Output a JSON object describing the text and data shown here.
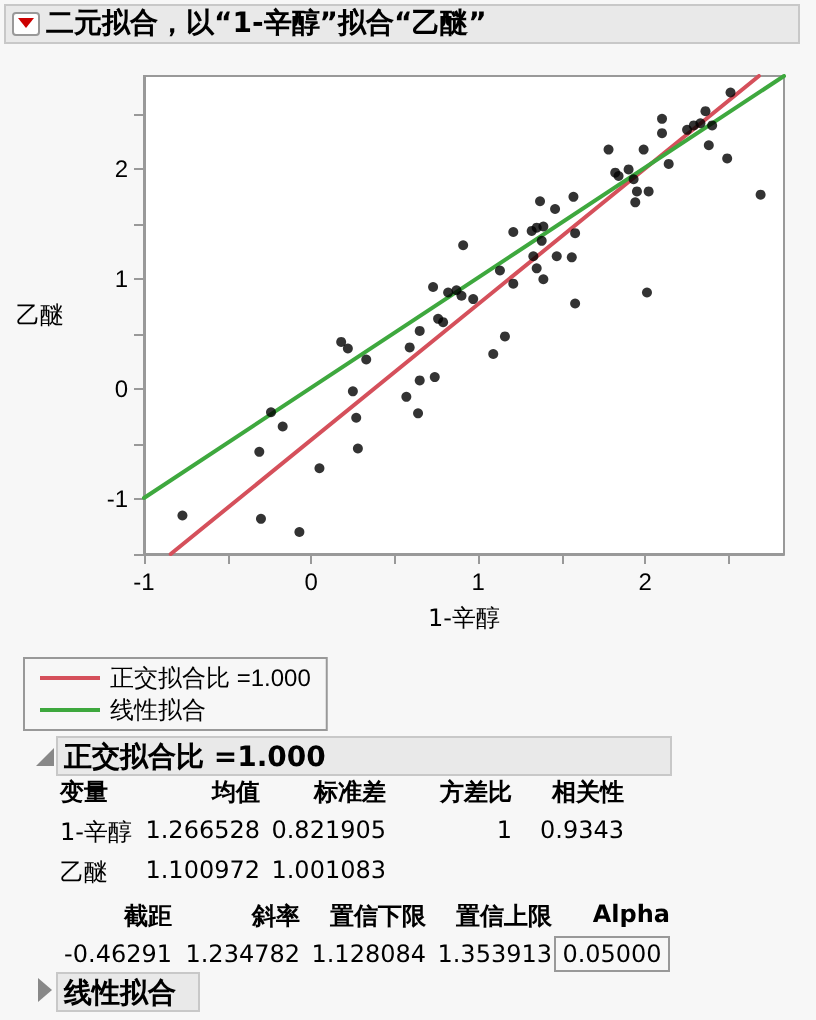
{
  "chart_data": {
    "type": "scatter",
    "title": "二元拟合，以“1-辛醇”拟合“乙醚”",
    "xlabel": "1-辛醇",
    "ylabel": "乙醚",
    "xlim": [
      -1,
      2.83
    ],
    "ylim": [
      -1.5,
      2.85
    ],
    "xticks": [
      -1,
      {
        "value": -0.5,
        "label": null
      },
      0,
      {
        "value": 0.5,
        "label": null
      },
      1,
      {
        "value": 1.5,
        "label": null
      },
      2,
      {
        "value": 2.5,
        "label": null
      }
    ],
    "yticks": [
      {
        "value": -1.5,
        "label": null
      },
      -1,
      {
        "value": -0.5,
        "label": null
      },
      0,
      {
        "value": 0.5,
        "label": null
      },
      1,
      {
        "value": 1.5,
        "label": null
      },
      2,
      {
        "value": 2.5,
        "label": null
      }
    ],
    "grid": false,
    "legend": "bottom left",
    "marker": "circle",
    "series": [
      {
        "color": "#000000",
        "x": [
          2.51,
          2.36,
          2.1,
          2.1,
          2.25,
          2.29,
          2.33,
          2.4,
          2.38,
          2.49,
          2.69,
          1.78,
          1.82,
          1.84,
          1.9,
          1.93,
          1.99,
          1.95,
          2.02,
          1.94,
          2.14,
          1.37,
          1.46,
          1.57,
          1.21,
          1.32,
          1.39,
          1.35,
          1.38,
          1.58,
          1.33,
          1.47,
          1.56,
          1.35,
          1.39,
          1.21,
          1.13,
          0.91,
          0.73,
          0.82,
          0.87,
          0.9,
          0.97,
          1.58,
          2.01,
          0.76,
          0.79,
          0.65,
          1.16,
          1.09,
          0.18,
          0.22,
          0.33,
          0.59,
          0.25,
          0.57,
          0.65,
          0.74,
          0.64,
          0.27,
          -0.24,
          -0.17,
          -0.31,
          0.28,
          0.05,
          -0.77,
          -0.3,
          -0.07
        ],
        "values": [
          2.7,
          2.53,
          2.46,
          2.33,
          2.36,
          2.4,
          2.42,
          2.4,
          2.22,
          2.1,
          1.77,
          2.18,
          1.97,
          1.94,
          2.0,
          1.91,
          2.18,
          1.8,
          1.8,
          1.7,
          2.05,
          1.71,
          1.64,
          1.75,
          1.43,
          1.44,
          1.48,
          1.47,
          1.35,
          1.42,
          1.21,
          1.21,
          1.2,
          1.1,
          1.0,
          0.96,
          1.08,
          1.31,
          0.93,
          0.88,
          0.9,
          0.85,
          0.82,
          0.78,
          0.88,
          0.64,
          0.61,
          0.53,
          0.48,
          0.32,
          0.43,
          0.37,
          0.27,
          0.38,
          -0.02,
          -0.07,
          0.08,
          0.11,
          -0.22,
          -0.26,
          -0.21,
          -0.34,
          -0.57,
          -0.54,
          -0.72,
          -1.15,
          -1.18,
          -1.3
        ]
      },
      {
        "type": "line",
        "name": "正交拟合比 =1.000",
        "color": "#d5505b",
        "marker": "none",
        "line_style": "solid",
        "x": [
          -0.84,
          2.68
        ],
        "values": [
          -1.5,
          2.85
        ]
      },
      {
        "type": "line",
        "name": "线性拟合",
        "color": "#3ea83e",
        "marker": "none",
        "line_style": "solid",
        "x": [
          -1,
          2.83
        ],
        "values": [
          -0.99,
          2.85
        ]
      }
    ],
    "annotations": [
      "正交拟合比 =1.000",
      "变量",
      "均值",
      "标准差",
      "方差比",
      "相关性",
      "1-辛醇",
      "1.266528",
      "0.821905",
      "1",
      "0.9343",
      "乙醚",
      "1.100972",
      "1.001083",
      "截距",
      "斜率",
      "置信下限",
      "置信上限",
      "Alpha",
      "-0.46291",
      "1.234782",
      "1.128084",
      "1.353913",
      "0.05000",
      "线性拟合"
    ]
  }
}
